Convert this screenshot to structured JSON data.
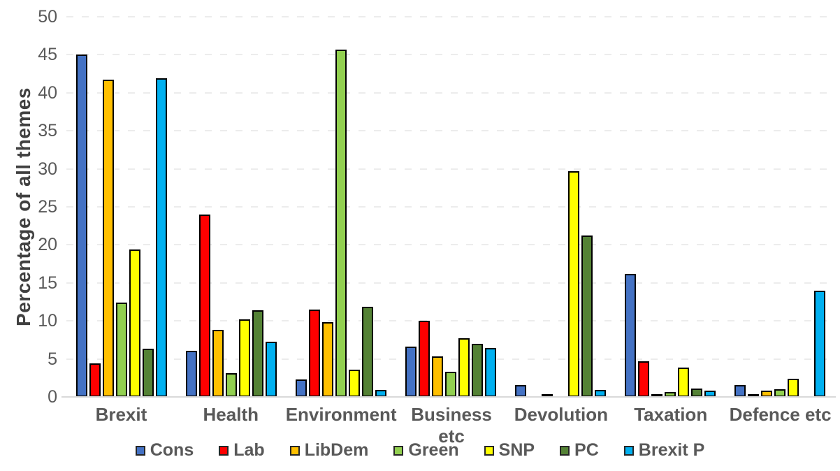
{
  "chart_data": {
    "type": "bar",
    "title": "",
    "ylabel": "Percentage of all themes",
    "xlabel": "",
    "categories": [
      "Brexit",
      "Health",
      "Environment",
      "Business etc",
      "Devolution",
      "Taxation",
      "Defence etc"
    ],
    "series": [
      {
        "name": "Cons",
        "color": "#4472C4",
        "values": [
          45.0,
          6.1,
          2.3,
          6.6,
          1.6,
          16.2,
          1.6
        ]
      },
      {
        "name": "Lab",
        "color": "#FF0000",
        "values": [
          4.4,
          24.0,
          11.5,
          10.0,
          0,
          4.7,
          0.3
        ]
      },
      {
        "name": "LibDem",
        "color": "#FFC000",
        "values": [
          41.7,
          8.8,
          9.8,
          5.3,
          0.4,
          0.4,
          0.8
        ]
      },
      {
        "name": "Green",
        "color": "#92D050",
        "values": [
          12.4,
          3.1,
          45.7,
          3.3,
          0,
          0.6,
          1.0
        ]
      },
      {
        "name": "SNP",
        "color": "#FFFF00",
        "values": [
          19.4,
          10.2,
          3.6,
          7.7,
          29.7,
          3.9,
          2.4
        ]
      },
      {
        "name": "PC",
        "color": "#548235",
        "values": [
          6.3,
          11.4,
          11.9,
          7.0,
          21.2,
          1.1,
          0
        ]
      },
      {
        "name": "Brexit P",
        "color": "#00B0F0",
        "values": [
          41.9,
          7.3,
          0.9,
          6.4,
          0.9,
          0.8,
          14.0
        ]
      }
    ],
    "yaxis": {
      "min": 0,
      "max": 50,
      "step": 5,
      "tick_labels": [
        "0",
        "5",
        "10",
        "15",
        "20",
        "25",
        "30",
        "35",
        "40",
        "45",
        "50"
      ]
    },
    "grid": true,
    "legend_position": "bottom"
  },
  "colors": {
    "axis_text": "#595959",
    "axis_title_text": "#404040",
    "gridline": "#ECECEC",
    "axis_line": "#D9D9D9",
    "bar_border": "#000000",
    "background": "#FFFFFF"
  }
}
